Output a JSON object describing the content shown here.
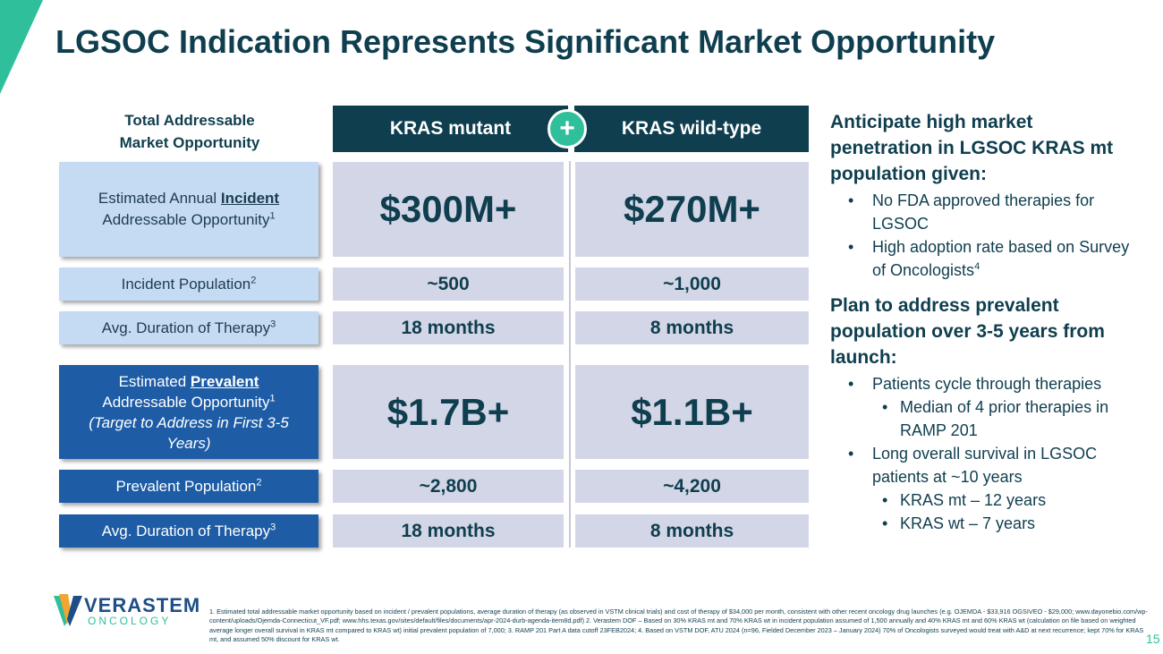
{
  "slide": {
    "title": "LGSOC Indication Represents Significant Market Opportunity",
    "page_number": "15"
  },
  "colors": {
    "navy": "#0f3e4f",
    "teal": "#2fbf9b",
    "light_blue": "#c5dbf3",
    "mid_blue": "#1e5ca6",
    "cell_gray": "#d3d6e6"
  },
  "table": {
    "header_left_line1": "Total Addressable",
    "header_left_line2": "Market Opportunity",
    "col1_header": "KRAS mutant",
    "col2_header": "KRAS wild-type",
    "plus_symbol": "+",
    "rows": {
      "incident_opportunity": {
        "label_pre": "Estimated Annual ",
        "label_bold": "Incident",
        "label_line2": "Addressable Opportunity",
        "label_sup": "1",
        "col1": "$300M+",
        "col2": "$270M+"
      },
      "incident_population": {
        "label": "Incident Population",
        "label_sup": "2",
        "col1": "~500",
        "col2": "~1,000"
      },
      "incident_duration": {
        "label": "Avg. Duration of Therapy",
        "label_sup": "3",
        "col1": "18 months",
        "col2": "8 months"
      },
      "prevalent_opportunity": {
        "label_pre": "Estimated ",
        "label_bold": "Prevalent",
        "label_line2": "Addressable Opportunity",
        "label_sup": "1",
        "label_italic": "(Target to Address in First 3-5 Years)",
        "col1": "$1.7B+",
        "col2": "$1.1B+"
      },
      "prevalent_population": {
        "label": "Prevalent Population",
        "label_sup": "2",
        "col1": "~2,800",
        "col2": "~4,200"
      },
      "prevalent_duration": {
        "label": "Avg. Duration of Therapy",
        "label_sup": "3",
        "col1": "18 months",
        "col2": "8 months"
      }
    }
  },
  "right_panel": {
    "heading1": "Anticipate high market penetration in LGSOC KRAS mt population given:",
    "bullets1": [
      "No FDA approved therapies for LGSOC",
      "High adoption rate based on Survey of Oncologists"
    ],
    "bullet1_2_sup": "4",
    "heading2": "Plan to address prevalent population over 3-5 years from launch:",
    "bullets2": [
      {
        "level": 1,
        "text": "Patients cycle through therapies"
      },
      {
        "level": 2,
        "text": "Median of 4 prior therapies in RAMP 201"
      },
      {
        "level": 1,
        "text": "Long overall survival in LGSOC patients at ~10 years"
      },
      {
        "level": 2,
        "text": "KRAS mt – 12 years"
      },
      {
        "level": 2,
        "text": "KRAS wt – 7 years"
      }
    ]
  },
  "logo": {
    "name": "VERASTEM",
    "sub": "ONCOLOGY"
  },
  "footnote": "1. Estimated total addressable market opportunity based on incident / prevalent populations, average duration of therapy (as observed in VSTM clinical trials) and cost of therapy of $34,000 per month, consistent with other recent oncology drug launches (e.g. OJEMDA - $33,916 OGSIVEO - $29,000; www.dayonebio.com/wp-content/uploads/Ojemda-Connecticut_VF.pdf; www.hhs.texas.gov/sites/default/files/documents/apr-2024-durb-agenda-item8d.pdf) 2. Verastem DOF – Based on 30% KRAS mt and 70% KRAS wt in incident population assumed of 1,500 annually and 40% KRAS mt and 60% KRAS wt (calculation on file based on weighted average longer overall survival in KRAS mt compared to KRAS wt) initial prevalent population of 7,000; 3. RAMP 201 Part A data cutoff 23FEB2024; 4. Based on VSTM DOF, ATU 2024 (n=96, Fielded December 2023 – January 2024) 70% of Oncologists surveyed would treat with A&D at next recurrence; kept 70% for KRAS mt, and assumed 50% discount for KRAS wt."
}
